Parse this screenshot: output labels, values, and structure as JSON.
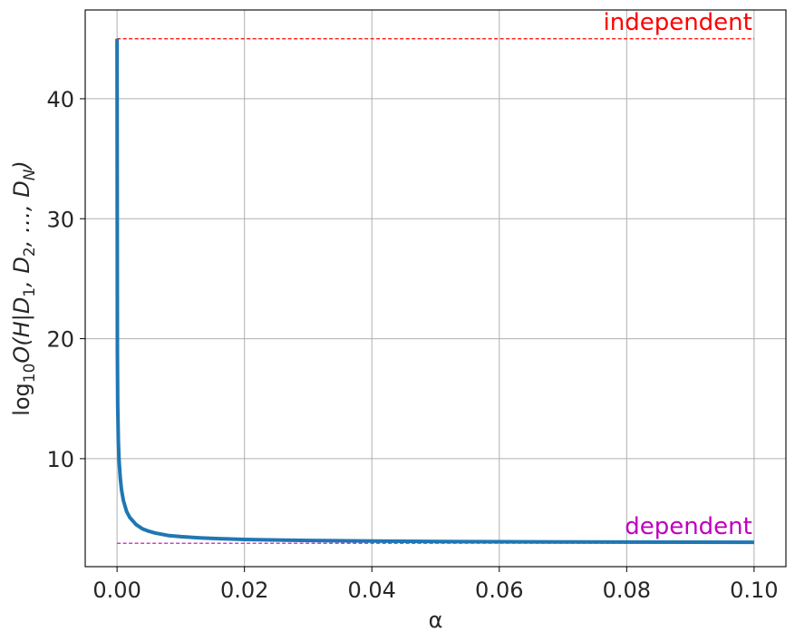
{
  "chart_data": {
    "type": "line",
    "title": "",
    "xlabel": "α",
    "ylabel": "log10O(H|D1,D2,…,DN)",
    "ylabel_parts": {
      "prefix": "log",
      "prefix_sub": "10",
      "body_start": "O(H|D",
      "sub1": "1",
      "mid1": ", D",
      "sub2": "2",
      "mid2": ", …, D",
      "subN": "N",
      "end": ")"
    },
    "xlim": [
      -0.005,
      0.105
    ],
    "ylim": [
      1.0,
      47.4
    ],
    "grid": true,
    "x_ticks": [
      0.0,
      0.02,
      0.04,
      0.06,
      0.08,
      0.1
    ],
    "x_tick_labels": [
      "0.00",
      "0.02",
      "0.04",
      "0.06",
      "0.08",
      "0.10"
    ],
    "y_ticks": [
      10,
      20,
      30,
      40
    ],
    "y_tick_labels": [
      "10",
      "20",
      "30",
      "40"
    ],
    "series": [
      {
        "color": "#1f77b4",
        "x": [
          0.0,
          5e-05,
          0.0001,
          0.0002,
          0.0003,
          0.0005,
          0.0007,
          0.001,
          0.0015,
          0.002,
          0.003,
          0.004,
          0.005,
          0.006,
          0.008,
          0.01,
          0.013,
          0.016,
          0.02,
          0.025,
          0.03,
          0.04,
          0.05,
          0.06,
          0.07,
          0.08,
          0.09,
          0.1
        ],
        "y": [
          45.0,
          19.0,
          14.5,
          11.5,
          10.0,
          8.4,
          7.4,
          6.5,
          5.6,
          5.1,
          4.5,
          4.15,
          3.95,
          3.8,
          3.6,
          3.5,
          3.4,
          3.33,
          3.27,
          3.22,
          3.18,
          3.13,
          3.1,
          3.08,
          3.06,
          3.05,
          3.04,
          3.03
        ]
      }
    ],
    "reference_lines": [
      {
        "label": "independent",
        "y": 45.0,
        "x_range": [
          0.0,
          0.1
        ],
        "color": "#ff0000",
        "style": "dashed"
      },
      {
        "label": "dependent",
        "y": 2.95,
        "x_range": [
          0.0,
          0.1
        ],
        "color": "#bf00bf",
        "style": "dashed"
      }
    ],
    "colors": {
      "grid": "#b0b0b0",
      "axes": "#000000",
      "text": "#262626"
    }
  }
}
